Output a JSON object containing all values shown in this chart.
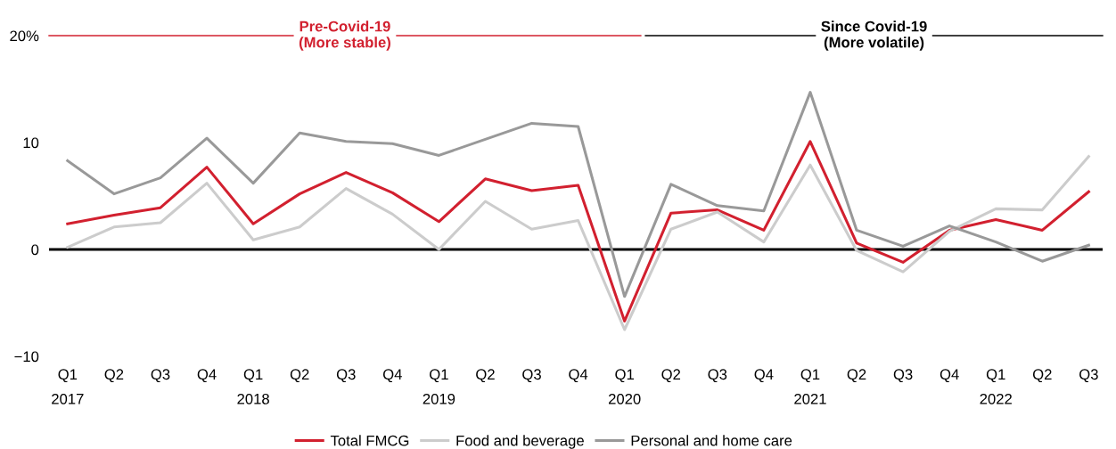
{
  "chart_data": {
    "type": "line",
    "categories": [
      "Q1\n2017",
      "Q2",
      "Q3",
      "Q4",
      "Q1\n2018",
      "Q2",
      "Q3",
      "Q4",
      "Q1\n2019",
      "Q2",
      "Q3",
      "Q4",
      "Q1\n2020",
      "Q2",
      "Q3",
      "Q4",
      "Q1\n2021",
      "Q2",
      "Q3",
      "Q4",
      "Q1\n2022",
      "Q2",
      "Q3"
    ],
    "series": [
      {
        "name": "Total FMCG",
        "color": "#d2202f",
        "values": [
          2.4,
          3.2,
          3.9,
          7.7,
          2.4,
          5.2,
          7.2,
          5.3,
          2.6,
          6.6,
          5.5,
          6.0,
          -6.7,
          3.4,
          3.7,
          1.8,
          10.1,
          0.6,
          -1.2,
          1.8,
          2.8,
          1.8,
          5.4
        ]
      },
      {
        "name": "Food and beverage",
        "color": "#cccccc",
        "values": [
          0.2,
          2.1,
          2.5,
          6.2,
          0.9,
          2.1,
          5.7,
          3.3,
          0.0,
          4.5,
          1.9,
          2.7,
          -7.5,
          1.9,
          3.5,
          0.7,
          7.9,
          -0.1,
          -2.1,
          1.7,
          3.8,
          3.7,
          8.7
        ]
      },
      {
        "name": "Personal and home care",
        "color": "#999999",
        "values": [
          8.3,
          5.2,
          6.7,
          10.4,
          6.2,
          10.9,
          10.1,
          9.9,
          8.8,
          10.3,
          11.8,
          11.5,
          -4.4,
          6.1,
          4.1,
          3.6,
          14.7,
          1.8,
          0.3,
          2.2,
          0.7,
          -1.1,
          0.4
        ]
      }
    ],
    "ylim": [
      -10,
      20
    ],
    "yticks": [
      -10,
      0,
      10,
      {
        "value": 20,
        "label": "20%"
      }
    ],
    "ref_lines": [
      {
        "axis": "y",
        "value": 0,
        "color": "#000000"
      }
    ],
    "annotations": [
      "Pre-Covid-19\n(More stable)",
      "Since Covid-19\n(More volatile)"
    ],
    "grid": false,
    "legend": "bottom",
    "line_style": "solid",
    "marker": "none"
  }
}
